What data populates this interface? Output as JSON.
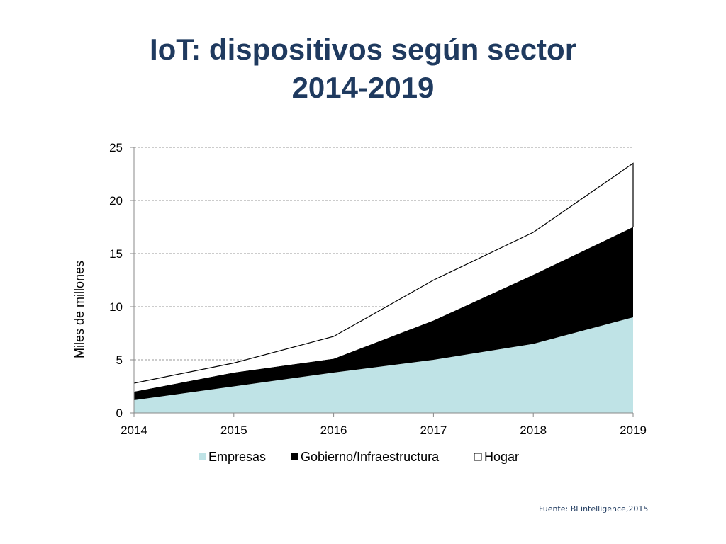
{
  "slide": {
    "title_line1": "IoT: dispositivos según sector",
    "title_line2": "2014-2019",
    "source": "Fuente: BI intelligence,2015"
  },
  "colors": {
    "title": "#1f3a5f",
    "empresas": "#bfe3e6",
    "gobierno": "#000000",
    "hogar": "#ffffff",
    "grid": "#999999"
  },
  "chart_data": {
    "type": "area",
    "stacked": true,
    "title": "",
    "xlabel": "",
    "ylabel": "Miles de millones",
    "x": [
      "2014",
      "2015",
      "2016",
      "2017",
      "2018",
      "2019"
    ],
    "ylim": [
      0,
      25
    ],
    "yticks": [
      "0",
      "5",
      "10",
      "15",
      "20",
      "25"
    ],
    "grid": "horizontal dashed",
    "legend_position": "bottom",
    "series": [
      {
        "name": "Empresas",
        "values": [
          1.2,
          2.5,
          3.8,
          5.0,
          6.5,
          9.0
        ]
      },
      {
        "name": "Gobierno/Infraestructura",
        "values": [
          0.8,
          1.3,
          1.3,
          3.7,
          6.5,
          8.5
        ]
      },
      {
        "name": "Hogar",
        "values": [
          0.8,
          0.9,
          2.1,
          3.8,
          4.0,
          6.0
        ]
      }
    ]
  }
}
